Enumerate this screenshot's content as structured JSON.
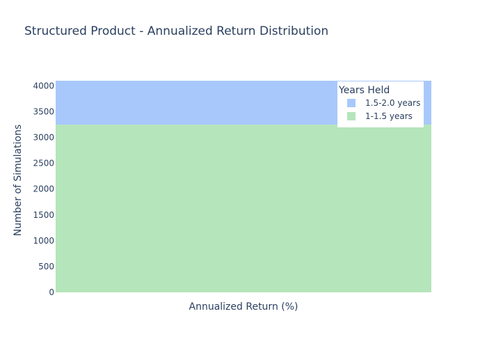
{
  "chart_data": {
    "type": "bar",
    "barmode": "stack",
    "title": "Structured Product - Annualized Return Distribution",
    "xlabel": "Annualized Return (%)",
    "ylabel": "Number of Simulations",
    "ylim": [
      0,
      4100
    ],
    "yticks": [
      0,
      500,
      1000,
      1500,
      2000,
      2500,
      3000,
      3500,
      4000
    ],
    "grid": true,
    "legend": {
      "title": "Years Held",
      "placement": "top-right"
    },
    "series": [
      {
        "name": "1-1.5 years",
        "values": [
          3250
        ],
        "color": "#b5e5bb"
      },
      {
        "name": "1.5-2.0 years",
        "values": [
          850
        ],
        "color": "#a8c8fc"
      }
    ],
    "legend_order": [
      "1.5-2.0 years",
      "1-1.5 years"
    ]
  }
}
